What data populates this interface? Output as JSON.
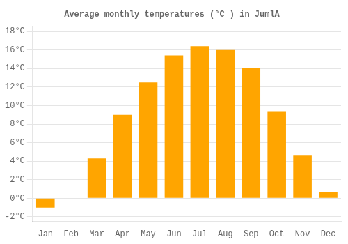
{
  "chart_data": {
    "type": "bar",
    "title": "Average monthly temperatures (°C ) in JumlÄ",
    "categories": [
      "Jan",
      "Feb",
      "Mar",
      "Apr",
      "May",
      "Jun",
      "Jul",
      "Aug",
      "Sep",
      "Oct",
      "Nov",
      "Dec"
    ],
    "values": [
      -1.0,
      0.0,
      4.3,
      9.0,
      12.5,
      15.4,
      16.4,
      16.0,
      14.1,
      9.4,
      4.6,
      0.7
    ],
    "color": "#FFA500",
    "ylim": [
      -2.5,
      18.5
    ],
    "yticks": [
      {
        "value": -2,
        "label": "-2°C"
      },
      {
        "value": 0,
        "label": "0°C"
      },
      {
        "value": 2,
        "label": "2°C"
      },
      {
        "value": 4,
        "label": "4°C"
      },
      {
        "value": 6,
        "label": "6°C"
      },
      {
        "value": 8,
        "label": "8°C"
      },
      {
        "value": 10,
        "label": "10°C"
      },
      {
        "value": 12,
        "label": "12°C"
      },
      {
        "value": 14,
        "label": "14°C"
      },
      {
        "value": 16,
        "label": "16°C"
      },
      {
        "value": 18,
        "label": "18°C"
      }
    ],
    "grid": true
  }
}
